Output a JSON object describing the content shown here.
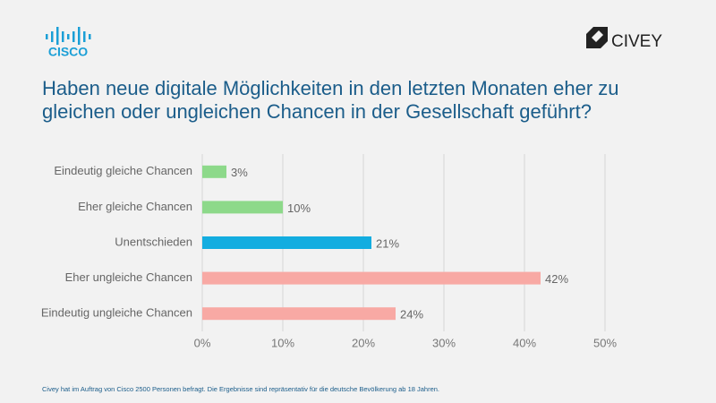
{
  "logos": {
    "left": "CISCO",
    "right": "CIVEY"
  },
  "chart_data": {
    "type": "bar",
    "orientation": "horizontal",
    "title": "Haben neue digitale Möglichkeiten in den letzten Monaten eher zu gleichen oder ungleichen Chancen in der Gesellschaft geführt?",
    "categories": [
      "Eindeutig gleiche Chancen",
      "Eher gleiche Chancen",
      "Unentschieden",
      "Eher ungleiche Chancen",
      "Eindeutig ungleiche Chancen"
    ],
    "values": [
      3,
      10,
      21,
      42,
      24
    ],
    "value_labels": [
      "3%",
      "10%",
      "21%",
      "42%",
      "24%"
    ],
    "colors": [
      "#8dd98a",
      "#8dd98a",
      "#13ade0",
      "#f8a9a4",
      "#f8a9a4"
    ],
    "xlim": [
      0,
      50
    ],
    "xticks": [
      {
        "value": 0,
        "label": "0%"
      },
      {
        "value": 10,
        "label": "10%"
      },
      {
        "value": 20,
        "label": "20%"
      },
      {
        "value": 30,
        "label": "30%"
      },
      {
        "value": 40,
        "label": "40%"
      },
      {
        "value": 50,
        "label": "50%"
      }
    ],
    "grid": true
  },
  "footer": "Civey hat im Auftrag von Cisco 2500 Personen befragt. Die Ergebnisse sind repräsentativ für die deutsche Bevölkerung ab 18 Jahren."
}
